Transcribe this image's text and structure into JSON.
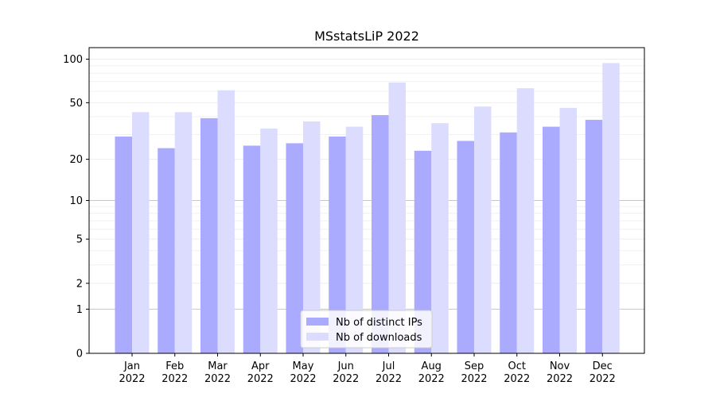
{
  "chart_data": {
    "type": "bar",
    "title": "MSstatsLiP 2022",
    "xlabel": "",
    "ylabel": "",
    "yscale": "log1p",
    "ylim": [
      0,
      120
    ],
    "yticks": [
      0,
      1,
      2,
      5,
      10,
      20,
      50,
      100
    ],
    "grid": true,
    "legend_position": "bottom-center",
    "categories": [
      "Jan\n2022",
      "Feb\n2022",
      "Mar\n2022",
      "Apr\n2022",
      "May\n2022",
      "Jun\n2022",
      "Jul\n2022",
      "Aug\n2022",
      "Sep\n2022",
      "Oct\n2022",
      "Nov\n2022",
      "Dec\n2022"
    ],
    "series": [
      {
        "name": "Nb of distinct IPs",
        "color": "#aaaaff",
        "values": [
          29,
          24,
          39,
          25,
          26,
          29,
          41,
          23,
          27,
          31,
          34,
          38
        ]
      },
      {
        "name": "Nb of downloads",
        "color": "#dcdcff",
        "values": [
          43,
          43,
          61,
          33,
          37,
          34,
          69,
          36,
          47,
          63,
          46,
          94
        ]
      }
    ]
  }
}
